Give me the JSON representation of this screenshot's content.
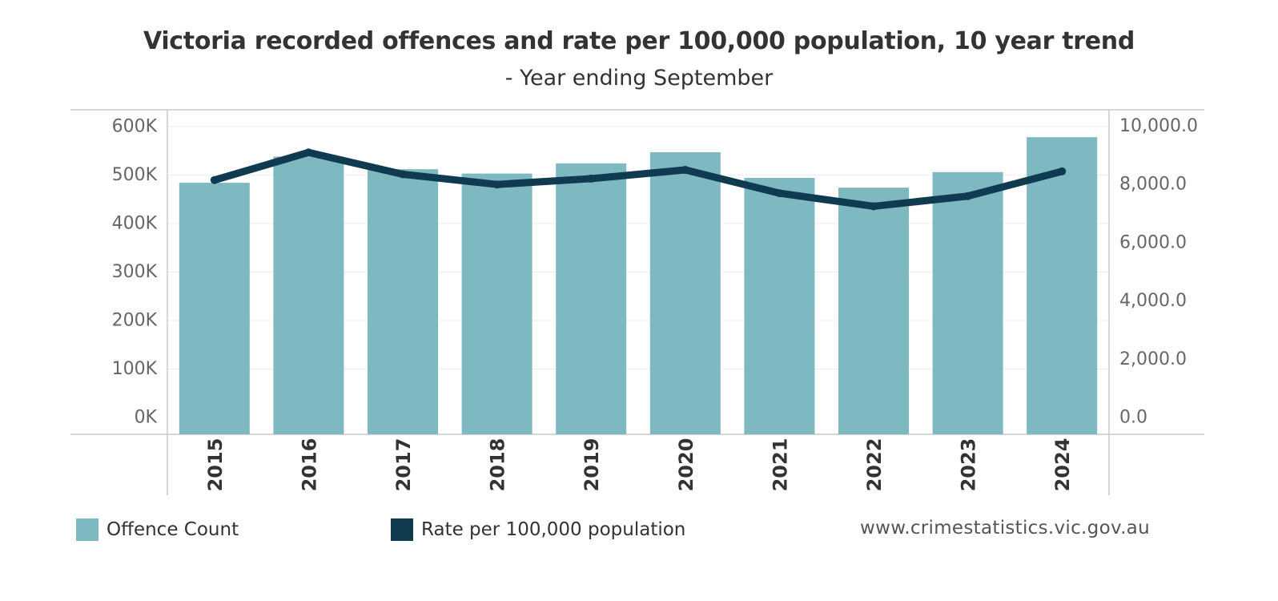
{
  "chart_data": {
    "type": "bar+line",
    "title": "Victoria recorded offences and rate per 100,000 population, 10 year trend",
    "subtitle": "- Year ending September",
    "categories": [
      "2015",
      "2016",
      "2017",
      "2018",
      "2019",
      "2020",
      "2021",
      "2022",
      "2023",
      "2024"
    ],
    "series": [
      {
        "name": "Offence Count",
        "type": "bar",
        "axis": "left",
        "color": "#7eb8c0",
        "values": [
          484000,
          538000,
          512000,
          503000,
          524000,
          547000,
          494000,
          474000,
          506000,
          578000
        ]
      },
      {
        "name": "Rate per 100,000 population",
        "type": "line",
        "axis": "right",
        "color": "#0f3a50",
        "values": [
          8150,
          9100,
          8350,
          8000,
          8200,
          8500,
          7700,
          7250,
          7600,
          8450
        ]
      }
    ],
    "y_left": {
      "ticks": [
        0,
        100000,
        200000,
        300000,
        400000,
        500000,
        600000
      ],
      "tick_labels": [
        "0K",
        "100K",
        "200K",
        "300K",
        "400K",
        "500K",
        "600K"
      ]
    },
    "y_right": {
      "ticks": [
        0,
        2000,
        4000,
        6000,
        8000,
        10000
      ],
      "tick_labels": [
        "0.0",
        "2,000.0",
        "4,000.0",
        "6,000.0",
        "8,000.0",
        "10,000.0"
      ]
    },
    "grid": true,
    "legend_position": "bottom-left"
  },
  "legend": {
    "bar_label": "Offence Count",
    "line_label": "Rate per 100,000 population",
    "bar_color": "#7eb8c0",
    "line_color": "#0f3a50"
  },
  "source": "www.crimestatistics.vic.gov.au"
}
